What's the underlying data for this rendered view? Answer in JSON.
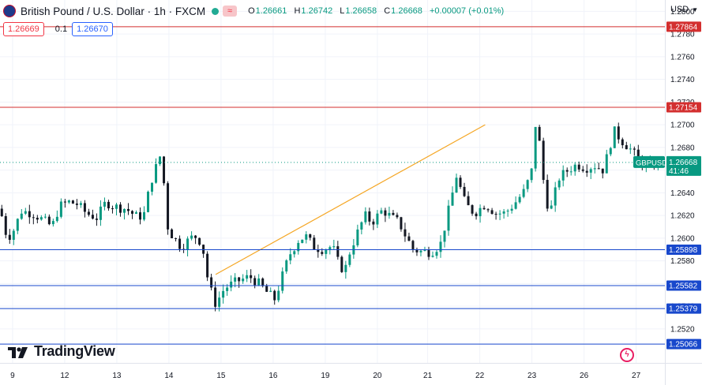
{
  "header": {
    "title": "British Pound / U.S. Dollar · 1h · FXCM",
    "open_label": "O",
    "open": "1.26661",
    "high_label": "H",
    "high": "1.26742",
    "low_label": "L",
    "low": "1.26658",
    "close_label": "C",
    "close": "1.26668",
    "change": "+0.00007 (+0.01%)"
  },
  "quote": {
    "bid": "1.26669",
    "spread": "0.1",
    "ask": "1.26670"
  },
  "currency": "USD",
  "brand": "TradingView",
  "colors": {
    "up": "#089981",
    "down": "#131722",
    "support": "#1848cc",
    "resistance": "#d32f2f",
    "trendline": "#f5a623",
    "current": "#089981",
    "grid": "#f0f3fa",
    "axis_text": "#131722"
  },
  "chart_data": {
    "type": "candlestick",
    "symbol": "GBPUSD",
    "timeframe": "1h",
    "ylim": [
      1.249,
      1.281
    ],
    "y_ticks": [
      1.252,
      1.254,
      1.256,
      1.258,
      1.26,
      1.262,
      1.264,
      1.266,
      1.268,
      1.27,
      1.272,
      1.274,
      1.276,
      1.278,
      1.28
    ],
    "x_ticks": [
      {
        "label": "9",
        "x": 0.7
      },
      {
        "label": "12",
        "x": 3.6
      },
      {
        "label": "13",
        "x": 6.5
      },
      {
        "label": "14",
        "x": 9.4
      },
      {
        "label": "15",
        "x": 12.3
      },
      {
        "label": "16",
        "x": 15.2
      },
      {
        "label": "19",
        "x": 18.1
      },
      {
        "label": "20",
        "x": 21.0
      },
      {
        "label": "21",
        "x": 23.8
      },
      {
        "label": "22",
        "x": 26.7
      },
      {
        "label": "23",
        "x": 29.6
      },
      {
        "label": "26",
        "x": 32.5
      },
      {
        "label": "27",
        "x": 35.4
      }
    ],
    "horizontal_levels": [
      {
        "price": 1.27864,
        "label": "1.27864",
        "kind": "resistance"
      },
      {
        "price": 1.27154,
        "label": "1.27154",
        "kind": "resistance"
      },
      {
        "price": 1.25898,
        "label": "1.25898",
        "kind": "support"
      },
      {
        "price": 1.25582,
        "label": "1.25582",
        "kind": "support"
      },
      {
        "price": 1.25379,
        "label": "1.25379",
        "kind": "support"
      },
      {
        "price": 1.25066,
        "label": "1.25066",
        "kind": "support"
      }
    ],
    "trendline": {
      "x1": 12.0,
      "y1": 1.2568,
      "x2": 27.0,
      "y2": 1.27
    },
    "current_price": {
      "price": 1.26668,
      "label": "1.26668",
      "countdown": "41:46",
      "tag": "GBPUSD"
    },
    "path": [
      [
        0.0,
        1.2626
      ],
      [
        0.4,
        1.26
      ],
      [
        0.7,
        1.2605
      ],
      [
        1.2,
        1.2624
      ],
      [
        1.8,
        1.2622
      ],
      [
        2.4,
        1.2616
      ],
      [
        2.9,
        1.261
      ],
      [
        3.3,
        1.2628
      ],
      [
        3.8,
        1.2632
      ],
      [
        4.3,
        1.263
      ],
      [
        4.8,
        1.2622
      ],
      [
        5.4,
        1.2618
      ],
      [
        5.9,
        1.2632
      ],
      [
        6.3,
        1.2628
      ],
      [
        7.0,
        1.2626
      ],
      [
        7.6,
        1.2619
      ],
      [
        8.0,
        1.262
      ],
      [
        8.4,
        1.265
      ],
      [
        8.9,
        1.2672
      ],
      [
        9.2,
        1.264
      ],
      [
        9.35,
        1.2608
      ],
      [
        9.7,
        1.26
      ],
      [
        10.1,
        1.2592
      ],
      [
        10.6,
        1.26
      ],
      [
        11.0,
        1.2602
      ],
      [
        11.3,
        1.259
      ],
      [
        11.6,
        1.256
      ],
      [
        12.0,
        1.2542
      ],
      [
        12.5,
        1.2556
      ],
      [
        13.2,
        1.2562
      ],
      [
        13.9,
        1.2566
      ],
      [
        14.4,
        1.256
      ],
      [
        14.8,
        1.2553
      ],
      [
        15.3,
        1.2546
      ],
      [
        15.7,
        1.2566
      ],
      [
        16.1,
        1.2585
      ],
      [
        16.6,
        1.2598
      ],
      [
        17.0,
        1.2602
      ],
      [
        17.5,
        1.2592
      ],
      [
        18.0,
        1.259
      ],
      [
        18.5,
        1.2593
      ],
      [
        18.9,
        1.2575
      ],
      [
        19.2,
        1.2572
      ],
      [
        19.5,
        1.259
      ],
      [
        19.9,
        1.2605
      ],
      [
        20.3,
        1.262
      ],
      [
        20.7,
        1.2614
      ],
      [
        21.3,
        1.2625
      ],
      [
        21.8,
        1.2618
      ],
      [
        22.2,
        1.2614
      ],
      [
        22.6,
        1.2601
      ],
      [
        23.0,
        1.259
      ],
      [
        23.5,
        1.2588
      ],
      [
        24.0,
        1.2588
      ],
      [
        24.5,
        1.2594
      ],
      [
        24.9,
        1.262
      ],
      [
        25.4,
        1.2655
      ],
      [
        25.9,
        1.263
      ],
      [
        26.4,
        1.2622
      ],
      [
        27.0,
        1.263
      ],
      [
        27.6,
        1.2622
      ],
      [
        28.1,
        1.2622
      ],
      [
        28.6,
        1.263
      ],
      [
        29.2,
        1.2642
      ],
      [
        29.6,
        1.266
      ],
      [
        29.8,
        1.27
      ],
      [
        30.1,
        1.2678
      ],
      [
        30.3,
        1.264
      ],
      [
        30.6,
        1.2622
      ],
      [
        31.1,
        1.2653
      ],
      [
        31.6,
        1.266
      ],
      [
        32.1,
        1.2665
      ],
      [
        32.6,
        1.2662
      ],
      [
        33.1,
        1.2664
      ],
      [
        33.6,
        1.266
      ],
      [
        33.9,
        1.268
      ],
      [
        34.2,
        1.2694
      ],
      [
        34.6,
        1.2686
      ],
      [
        35.0,
        1.268
      ],
      [
        35.5,
        1.267
      ],
      [
        36.0,
        1.2662
      ],
      [
        36.4,
        1.2665
      ],
      [
        36.7,
        1.2667
      ]
    ]
  }
}
